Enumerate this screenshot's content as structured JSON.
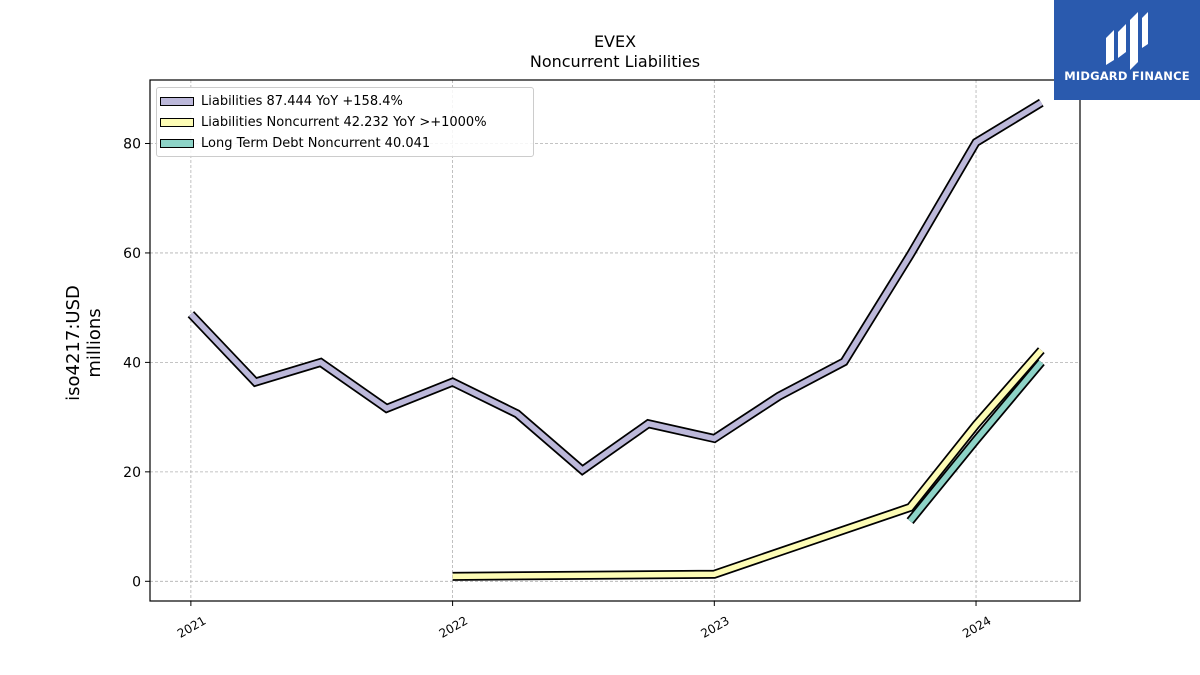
{
  "header": {
    "title": "EVEX",
    "subtitle": "Noncurrent  Liabilities"
  },
  "logo": {
    "text": "MIDGARD FINANCE",
    "background": "#2a5aae"
  },
  "chart_data": {
    "type": "line",
    "title": "EVEX",
    "subtitle": "Noncurrent  Liabilities",
    "ylabel_line1": "iso4217:USD",
    "ylabel_line2": "millions",
    "xlim": [
      "2020-11-05",
      "2024-05-25"
    ],
    "ylim": [
      -3.6,
      91.6
    ],
    "x_ticks": [
      {
        "value": "2021-01-01",
        "label": "2021"
      },
      {
        "value": "2022-01-01",
        "label": "2022"
      },
      {
        "value": "2023-01-01",
        "label": "2023"
      },
      {
        "value": "2024-01-01",
        "label": "2024"
      }
    ],
    "y_ticks": [
      0,
      20,
      40,
      60,
      80
    ],
    "grid": true,
    "legend_position": "upper-left",
    "series": [
      {
        "name": "Liabilities",
        "legend": "Liabilities  87.444 YoY +158.4%",
        "color": "#bcb8da",
        "points": [
          [
            "2021-01-01",
            48.8
          ],
          [
            "2021-04-01",
            36.4
          ],
          [
            "2021-07-01",
            40.0
          ],
          [
            "2021-10-01",
            31.6
          ],
          [
            "2022-01-01",
            36.4
          ],
          [
            "2022-04-01",
            30.6
          ],
          [
            "2022-07-01",
            20.3
          ],
          [
            "2022-10-01",
            28.8
          ],
          [
            "2023-01-01",
            26.1
          ],
          [
            "2023-04-01",
            33.8
          ],
          [
            "2023-07-01",
            40.1
          ],
          [
            "2023-10-01",
            59.6
          ],
          [
            "2024-01-01",
            80.2
          ],
          [
            "2024-04-01",
            87.444
          ]
        ]
      },
      {
        "name": "Liabilities Noncurrent",
        "legend": "Liabilities Noncurrent  42.232 YoY >+1000%",
        "color": "#fdfcb5",
        "points": [
          [
            "2022-01-01",
            0.9
          ],
          [
            "2023-01-01",
            1.3
          ],
          [
            "2023-10-01",
            13.5
          ],
          [
            "2024-01-01",
            28.6
          ],
          [
            "2024-04-01",
            42.232
          ]
        ]
      },
      {
        "name": "Long Term Debt Noncurrent",
        "legend": "Long Term Debt Noncurrent  40.041",
        "color": "#8dd3c7",
        "points": [
          [
            "2023-10-01",
            11.0
          ],
          [
            "2024-01-01",
            25.8
          ],
          [
            "2024-04-01",
            40.041
          ]
        ]
      }
    ]
  }
}
